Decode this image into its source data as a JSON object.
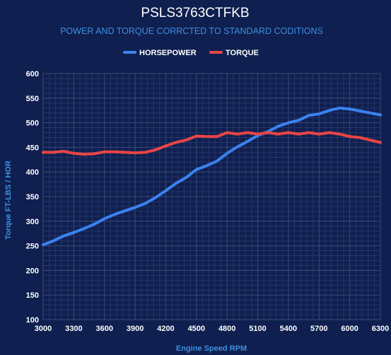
{
  "colors": {
    "background": "#0f1f4f",
    "title": "#ffffff",
    "subtitle": "#3d8fe0",
    "axis_title": "#3d8fe0",
    "tick": "#ffffff",
    "grid_major": "#3b4d7a",
    "grid_minor": "#25366a",
    "horsepower": "#3b82f0",
    "torque": "#e84545"
  },
  "chart_data": {
    "type": "line",
    "title": "PSLS3763CTFKB",
    "subtitle": "POWER AND TORQUE CORRCTED TO STANDARD CODITIONS",
    "xlabel": "Engine Speed RPM",
    "ylabel": "Torque FT-LBS / HOR",
    "xlim": [
      3000,
      6300
    ],
    "ylim": [
      100,
      600
    ],
    "x_ticks": [
      "3000",
      "3300",
      "3600",
      "3900",
      "4200",
      "4500",
      "4800",
      "5100",
      "5400",
      "5700",
      "6000",
      "6300"
    ],
    "y_ticks": [
      "100",
      "150",
      "200",
      "250",
      "300",
      "350",
      "400",
      "450",
      "500",
      "550",
      "600"
    ],
    "grid": true,
    "legend_position": "top-center",
    "x": [
      3000,
      3100,
      3200,
      3300,
      3400,
      3500,
      3600,
      3700,
      3800,
      3900,
      4000,
      4100,
      4200,
      4300,
      4400,
      4500,
      4600,
      4700,
      4800,
      4900,
      5000,
      5100,
      5200,
      5300,
      5400,
      5500,
      5600,
      5700,
      5800,
      5900,
      6000,
      6100,
      6200,
      6300
    ],
    "series": [
      {
        "name": "HORSEPOWER",
        "color": "#3b82f0",
        "values": [
          252,
          260,
          270,
          277,
          285,
          294,
          305,
          314,
          321,
          328,
          336,
          348,
          362,
          377,
          389,
          405,
          413,
          422,
          438,
          451,
          462,
          474,
          482,
          493,
          500,
          505,
          515,
          518,
          525,
          530,
          528,
          524,
          520,
          516
        ]
      },
      {
        "name": "TORQUE",
        "color": "#e84545",
        "values": [
          440,
          440,
          442,
          438,
          436,
          437,
          441,
          441,
          440,
          439,
          440,
          445,
          453,
          460,
          465,
          473,
          472,
          472,
          480,
          477,
          480,
          477,
          480,
          477,
          480,
          477,
          480,
          477,
          480,
          477,
          472,
          470,
          465,
          460
        ]
      }
    ]
  }
}
